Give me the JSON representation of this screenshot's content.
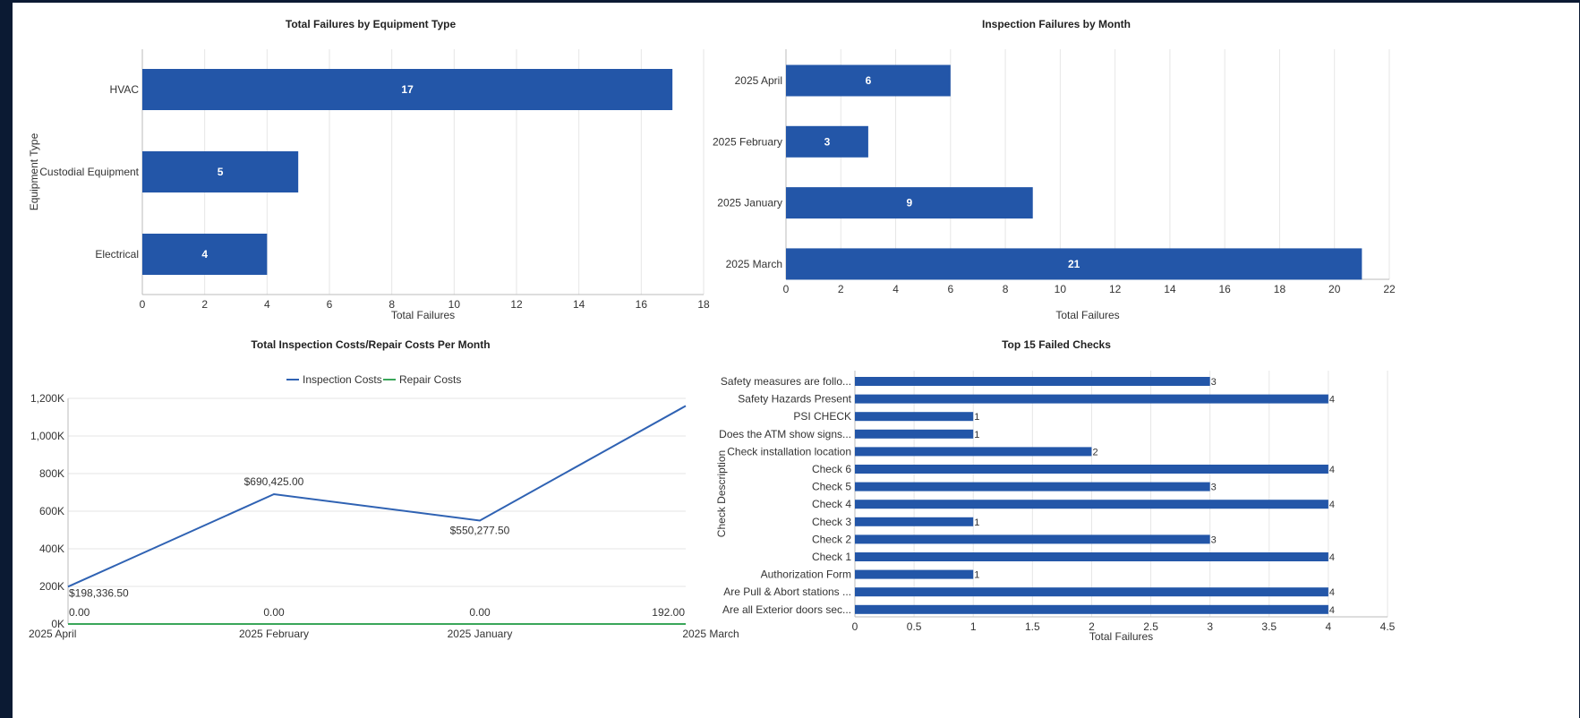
{
  "chart_data": [
    {
      "id": "equipment",
      "type": "bar",
      "orientation": "horizontal",
      "title": "Total Failures by Equipment Type",
      "xlabel": "Total Failures",
      "ylabel": "Equipment Type",
      "categories": [
        "HVAC",
        "Custodial Equipment",
        "Electrical"
      ],
      "values": [
        17,
        5,
        4
      ],
      "xlim": [
        0,
        18
      ],
      "xticks": [
        0,
        2,
        4,
        6,
        8,
        10,
        12,
        14,
        16,
        18
      ],
      "data_labels": "inside",
      "color": "#2356a8",
      "grid": true
    },
    {
      "id": "months",
      "type": "bar",
      "orientation": "horizontal",
      "title": "Inspection Failures by Month",
      "xlabel": "Total Failures",
      "ylabel": "",
      "categories": [
        "2025 April",
        "2025 February",
        "2025 January",
        "2025 March"
      ],
      "values": [
        6,
        3,
        9,
        21
      ],
      "xlim": [
        0,
        22
      ],
      "xticks": [
        0,
        2,
        4,
        6,
        8,
        10,
        12,
        14,
        16,
        18,
        20,
        22
      ],
      "data_labels": "inside",
      "color": "#2356a8",
      "grid": true
    },
    {
      "id": "costs",
      "type": "line",
      "title": "Total Inspection Costs/Repair Costs Per Month",
      "xlabel": "",
      "ylabel": "",
      "categories": [
        "2025 April",
        "2025 February",
        "2025 January",
        "2025 March"
      ],
      "series": [
        {
          "name": "Inspection Costs",
          "values": [
            198336.5,
            690425.0,
            550277.5,
            1160000
          ],
          "labels": [
            "$198,336.50",
            "$690,425.00",
            "$550,277.50",
            ""
          ],
          "color": "#2f62b3"
        },
        {
          "name": "Repair Costs",
          "values": [
            0,
            0,
            0,
            192
          ],
          "labels": [
            "0.00",
            "0.00",
            "0.00",
            "192.00"
          ],
          "color": "#3aa65a"
        }
      ],
      "ylim": [
        0,
        1200000
      ],
      "yticks": [
        0,
        200000,
        400000,
        600000,
        800000,
        1000000,
        1200000
      ],
      "ytick_labels": [
        "0K",
        "200K",
        "400K",
        "600K",
        "800K",
        "1,000K",
        "1,200K"
      ],
      "legend": "top-center",
      "grid": true
    },
    {
      "id": "checks",
      "type": "bar",
      "orientation": "horizontal",
      "title": "Top 15 Failed Checks",
      "xlabel": "Total Failures",
      "ylabel": "Check Description",
      "categories": [
        "Safety measures are follo...",
        "Safety Hazards Present",
        "PSI CHECK",
        "Does the ATM show signs...",
        "Check installation location",
        "Check 6",
        "Check 5",
        "Check 4",
        "Check 3",
        "Check 2",
        "Check 1",
        "Authorization Form",
        "Are Pull & Abort stations ...",
        "Are all Exterior doors sec..."
      ],
      "values": [
        3,
        4,
        1,
        1,
        2,
        4,
        3,
        4,
        1,
        3,
        4,
        1,
        4,
        4
      ],
      "xlim": [
        0,
        4.5
      ],
      "xticks": [
        0,
        0.5,
        1,
        1.5,
        2,
        2.5,
        3,
        3.5,
        4,
        4.5
      ],
      "data_labels": "outside",
      "color": "#2356a8",
      "grid": true
    }
  ]
}
